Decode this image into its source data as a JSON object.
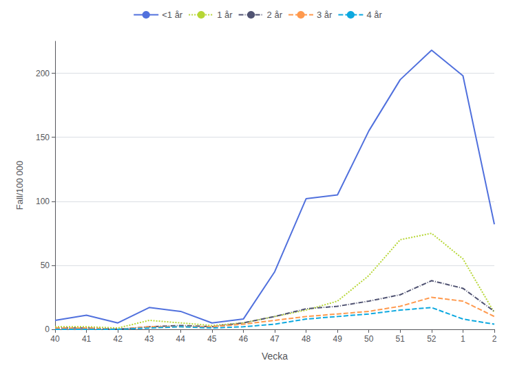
{
  "chart_data": {
    "type": "line",
    "categories": [
      "40",
      "41",
      "42",
      "43",
      "44",
      "45",
      "46",
      "47",
      "48",
      "49",
      "50",
      "51",
      "52",
      "1",
      "2"
    ],
    "series": [
      {
        "name": "<1 år",
        "line_style": "solid",
        "values": [
          7,
          11,
          5,
          17,
          14,
          5,
          8,
          45,
          102,
          105,
          155,
          195,
          218,
          198,
          82
        ]
      },
      {
        "name": "1 år",
        "line_style": "dotted",
        "values": [
          2,
          2,
          1,
          7,
          5,
          3,
          5,
          10,
          15,
          22,
          42,
          70,
          75,
          55,
          13
        ]
      },
      {
        "name": "2 år",
        "line_style": "dashdot",
        "values": [
          1,
          1,
          0,
          2,
          3,
          2,
          5,
          10,
          16,
          18,
          22,
          27,
          38,
          32,
          14
        ]
      },
      {
        "name": "3 år",
        "line_style": "dashed",
        "values": [
          1,
          1,
          0,
          2,
          2,
          2,
          4,
          7,
          10,
          12,
          14,
          18,
          25,
          22,
          10
        ]
      },
      {
        "name": "4 år",
        "line_style": "dashed",
        "values": [
          0,
          0,
          0,
          1,
          2,
          1,
          2,
          4,
          8,
          10,
          12,
          15,
          17,
          8,
          4
        ]
      }
    ],
    "xlabel": "Vecka",
    "ylabel": "Fall/100 000",
    "ylim": [
      0,
      225
    ],
    "yticks": [
      0,
      50,
      100,
      150,
      200
    ],
    "grid": true,
    "legend": "top"
  }
}
